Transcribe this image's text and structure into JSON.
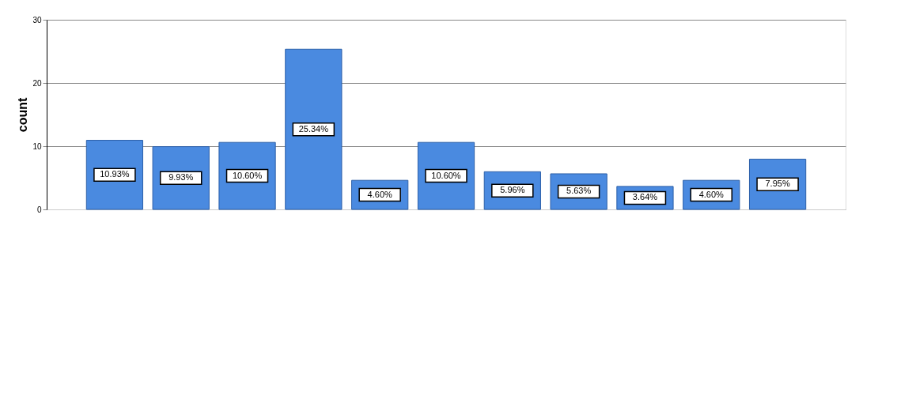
{
  "chart_data": {
    "type": "bar",
    "ylabel": "count",
    "categories": [
      null,
      null,
      null,
      null,
      null,
      null,
      null,
      null,
      null,
      null,
      null
    ],
    "values": [
      10.93,
      9.93,
      10.6,
      25.34,
      4.6,
      10.6,
      5.96,
      5.63,
      3.64,
      4.6,
      7.95
    ],
    "value_labels": [
      "10.93%",
      "9.93%",
      "10.60%",
      "25.34%",
      "4.60%",
      "10.60%",
      "5.96%",
      "5.63%",
      "3.64%",
      "4.60%",
      "7.95%"
    ],
    "color": "#4a8ae0",
    "ylim": [
      0,
      30
    ],
    "yticks": [
      0,
      10,
      20,
      30
    ],
    "grid": "y"
  }
}
